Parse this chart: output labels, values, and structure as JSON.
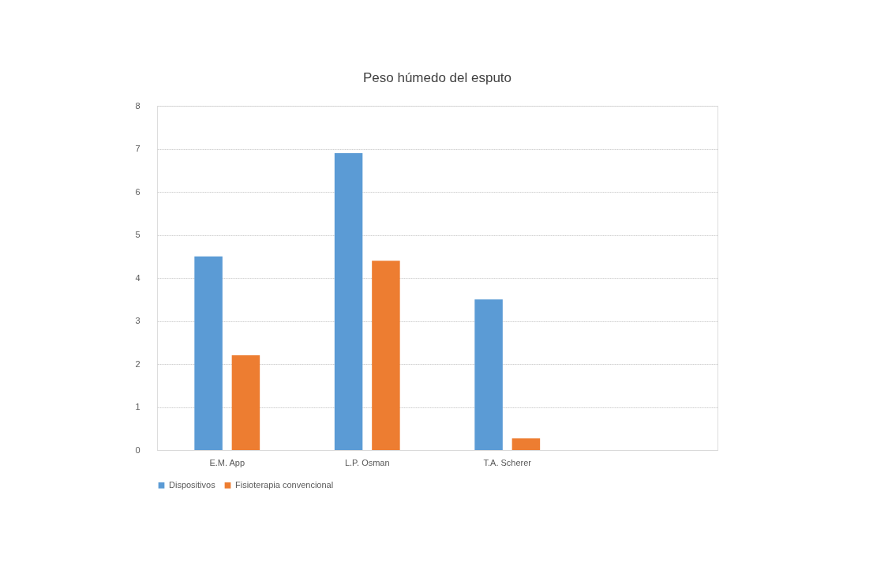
{
  "chart_data": {
    "type": "bar",
    "title": "Peso húmedo del esputo",
    "categories": [
      "E.M. App",
      "L.P. Osman",
      "T.A. Scherer",
      null
    ],
    "series": [
      {
        "name": "Dispositivos",
        "color": "#5b9bd5",
        "values": [
          4.5,
          6.9,
          3.5,
          null
        ]
      },
      {
        "name": "Fisioterapia convencional",
        "color": "#ed7d31",
        "values": [
          2.2,
          4.4,
          0.27,
          null
        ]
      }
    ],
    "ylim": [
      0,
      8
    ],
    "yticks": [
      0,
      1,
      2,
      3,
      4,
      5,
      6,
      7,
      8
    ],
    "grid": "y",
    "legend": "bottom"
  }
}
